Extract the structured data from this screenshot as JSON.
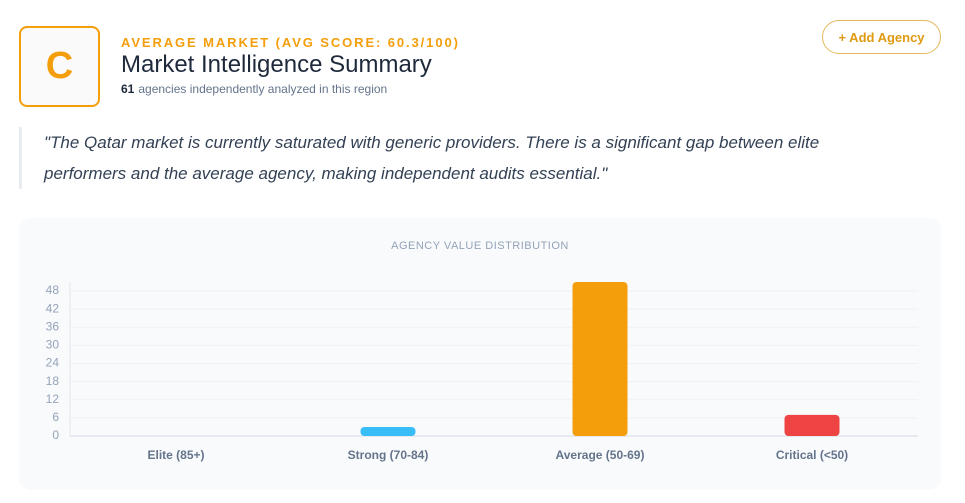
{
  "header": {
    "grade": "C",
    "eyebrow": "AVERAGE MARKET (AVG SCORE: 60.3/100)",
    "title": "Market Intelligence Summary",
    "agency_count": 61,
    "agency_text": "agencies independently analyzed in this region",
    "button": "+ Add Agency"
  },
  "quote": {
    "lines": [
      "\"The Qatar market is currently saturated with generic providers. There is a significant gap between elite",
      "performers and the average agency, making independent audits essential.\""
    ]
  },
  "chart_data": {
    "type": "bar",
    "title": "AGENCY VALUE DISTRIBUTION",
    "categories": [
      "Elite (85+)",
      "Strong (70-84)",
      "Average (50-69)",
      "Critical (<50)"
    ],
    "values": [
      0,
      3,
      51,
      7
    ],
    "colors": [
      "#10b981",
      "#38bdf8",
      "#f59e0b",
      "#ef4444"
    ],
    "ylim": [
      0,
      51
    ],
    "yticks": [
      0,
      6,
      12,
      18,
      24,
      30,
      36,
      42,
      48
    ],
    "grid": true
  }
}
